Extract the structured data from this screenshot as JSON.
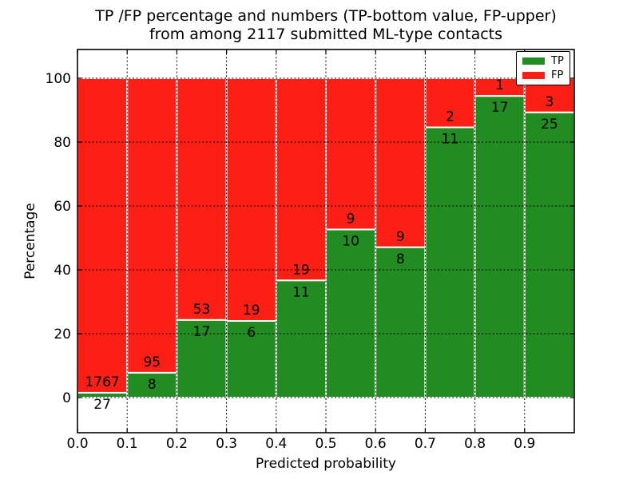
{
  "figure": {
    "title_line1": "TP /FP percentage and numbers (TP-bottom value, FP-upper)",
    "title_line2": "from among 2117 submitted ML-type contacts"
  },
  "chart_data": {
    "type": "bar",
    "subtype": "stacked-percentage-histogram",
    "title": "TP /FP percentage and numbers (TP-bottom value, FP-upper) from among 2117 submitted ML-type contacts",
    "xlabel": "Predicted probability",
    "ylabel": "Percentage",
    "xlim": [
      0.0,
      1.0
    ],
    "ylim": [
      -11,
      109
    ],
    "bin_width": 0.1,
    "bin_starts": [
      0.0,
      0.1,
      0.2,
      0.3,
      0.4,
      0.5,
      0.6,
      0.7,
      0.8,
      0.9
    ],
    "x_ticks": [
      0.0,
      0.1,
      0.2,
      0.3,
      0.4,
      0.5,
      0.6,
      0.7,
      0.8,
      0.9
    ],
    "x_tick_labels": [
      "0.0",
      "0.1",
      "0.2",
      "0.3",
      "0.4",
      "0.5",
      "0.6",
      "0.7",
      "0.8",
      "0.9"
    ],
    "y_ticks": [
      0,
      20,
      40,
      60,
      80,
      100
    ],
    "y_tick_labels": [
      "0",
      "20",
      "40",
      "60",
      "80",
      "100"
    ],
    "grid": {
      "style": "dotted",
      "color": "#000000",
      "on": true
    },
    "bar_edge_color": "#ffffff",
    "legend": {
      "position": "upper-right",
      "entries": [
        "TP",
        "FP"
      ]
    },
    "series": [
      {
        "name": "TP",
        "color": "#228b22",
        "counts": [
          27,
          8,
          17,
          6,
          11,
          10,
          8,
          11,
          17,
          25
        ],
        "percentages": [
          1.51,
          7.77,
          24.29,
          24.0,
          36.67,
          52.63,
          47.06,
          84.62,
          94.44,
          89.29
        ]
      },
      {
        "name": "FP",
        "color": "#fb1f15",
        "counts": [
          1767,
          95,
          53,
          19,
          19,
          9,
          9,
          2,
          1,
          3
        ],
        "percentages": [
          98.49,
          92.23,
          75.71,
          76.0,
          63.33,
          47.37,
          52.94,
          15.38,
          5.56,
          10.71
        ]
      }
    ]
  }
}
